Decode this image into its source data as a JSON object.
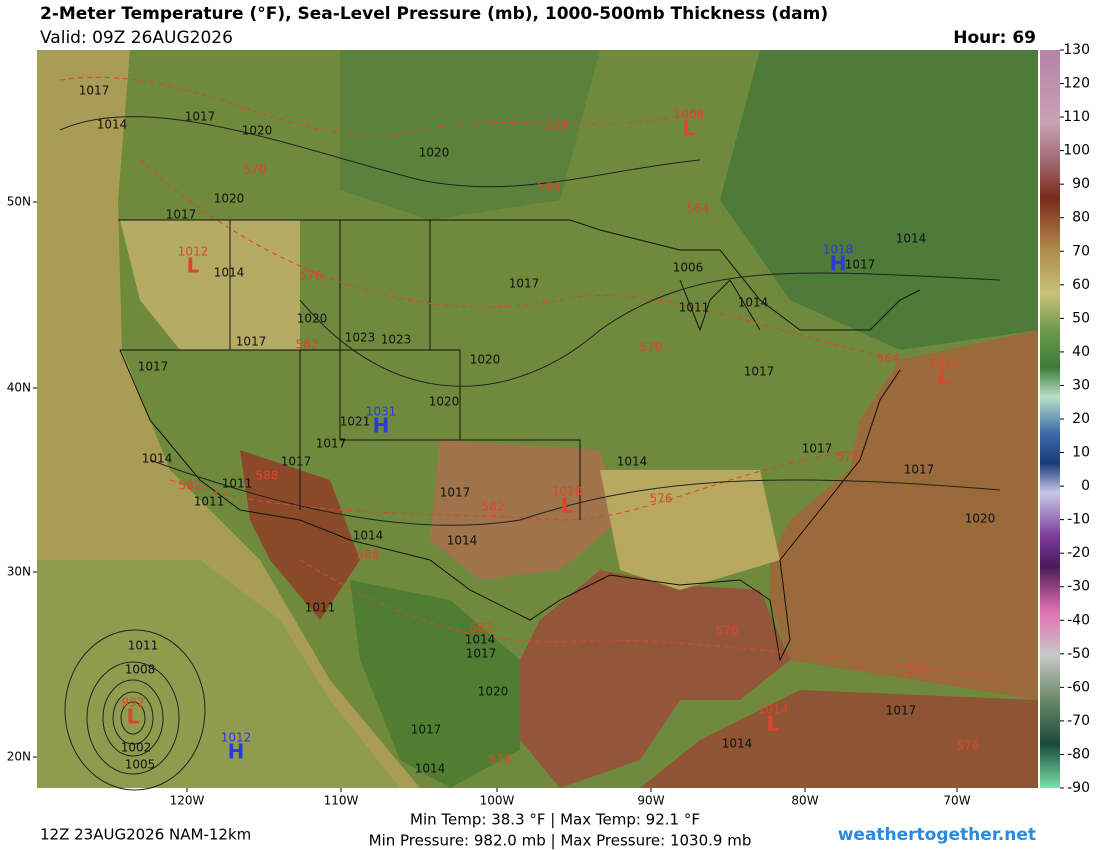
{
  "header": {
    "title": "2-Meter Temperature (°F), Sea-Level Pressure (mb), 1000-500mb Thickness (dam)",
    "valid": "Valid: 09Z 26AUG2026",
    "hour": "Hour: 69"
  },
  "colorbar": {
    "ticks": [
      130,
      120,
      110,
      100,
      90,
      80,
      70,
      60,
      50,
      40,
      30,
      20,
      10,
      0,
      -10,
      -20,
      -30,
      -40,
      -50,
      -60,
      -70,
      -80,
      -90
    ]
  },
  "axes": {
    "lat_labels": [
      "50N",
      "40N",
      "30N",
      "20N"
    ],
    "lon_labels": [
      "120W",
      "110W",
      "100W",
      "90W",
      "80W",
      "70W"
    ]
  },
  "pressure_centers": [
    {
      "letter": "L",
      "value": 1008
    },
    {
      "letter": "L",
      "value": 1012
    },
    {
      "letter": "H",
      "value": 1018
    },
    {
      "letter": "H",
      "value": 1031
    },
    {
      "letter": "L",
      "value": 1010
    },
    {
      "letter": "L",
      "value": 1015
    },
    {
      "letter": "L",
      "value": 992
    },
    {
      "letter": "H",
      "value": 1012
    },
    {
      "letter": "L",
      "value": 1014
    }
  ],
  "isobar_labels": [
    1017,
    1014,
    1017,
    1020,
    1020,
    1020,
    1017,
    1014,
    1017,
    1006,
    1014,
    1017,
    1011,
    1014,
    1020,
    1023,
    1023,
    1017,
    1020,
    1017,
    1017,
    1020,
    1021,
    1017,
    1014,
    1017,
    1014,
    1017,
    1017,
    1011,
    1017,
    1011,
    1014,
    1014,
    1020,
    1011,
    1014,
    1017,
    1011,
    1008,
    1020,
    1017,
    1017,
    1014,
    1002,
    1005,
    1014
  ],
  "thickness_labels": [
    570,
    588,
    564,
    564,
    576,
    582,
    570,
    564,
    588,
    582,
    582,
    576,
    588,
    582,
    576,
    576,
    576,
    576,
    576
  ],
  "footer": {
    "run": "12Z 23AUG2026 NAM-12km",
    "temps": "Min Temp:  38.3 °F | Max Temp:  92.1 °F",
    "pressures": "Min Pressure: 982.0 mb | Max Pressure: 1030.9 mb",
    "site": "weathertogether.net"
  }
}
